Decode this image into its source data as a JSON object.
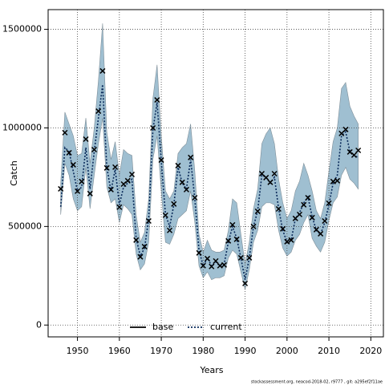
{
  "chart_data": {
    "type": "line",
    "xlabel": "Years",
    "ylabel": "Catch",
    "footer": "stockassessment.org, neacod-2018-02, r9777 , git: a295ef2f11ae",
    "xlim": [
      1943,
      2023
    ],
    "ylim": [
      -60000,
      1600000
    ],
    "xticks": [
      1950,
      1960,
      1970,
      1980,
      1990,
      2000,
      2010,
      2020
    ],
    "yticks": [
      0,
      500000,
      1000000,
      1500000
    ],
    "grid": true,
    "legend": "bottom",
    "band_color": "#9fbfd1",
    "x": [
      1946,
      1947,
      1948,
      1949,
      1950,
      1951,
      1952,
      1953,
      1954,
      1955,
      1956,
      1957,
      1958,
      1959,
      1960,
      1961,
      1962,
      1963,
      1964,
      1965,
      1966,
      1967,
      1968,
      1969,
      1970,
      1971,
      1972,
      1973,
      1974,
      1975,
      1976,
      1977,
      1978,
      1979,
      1980,
      1981,
      1982,
      1983,
      1984,
      1985,
      1986,
      1987,
      1988,
      1989,
      1990,
      1991,
      1992,
      1993,
      1994,
      1995,
      1996,
      1997,
      1998,
      1999,
      2000,
      2001,
      2002,
      2003,
      2004,
      2005,
      2006,
      2007,
      2008,
      2009,
      2010,
      2011,
      2012,
      2013,
      2014,
      2015,
      2016,
      2017
    ],
    "observed": [
      691000,
      976000,
      874000,
      813000,
      679000,
      728000,
      943000,
      667000,
      890000,
      1085000,
      1289000,
      797000,
      687000,
      801000,
      598000,
      715000,
      732000,
      764000,
      431000,
      346000,
      398000,
      528000,
      1000000,
      1142000,
      837000,
      557000,
      480000,
      614000,
      809000,
      724000,
      687000,
      850000,
      646000,
      366000,
      301000,
      337000,
      297000,
      325000,
      301000,
      305000,
      427000,
      508000,
      435000,
      341000,
      211000,
      341000,
      500000,
      577000,
      768000,
      748000,
      724000,
      768000,
      589000,
      488000,
      423000,
      431000,
      541000,
      561000,
      610000,
      646000,
      545000,
      484000,
      463000,
      528000,
      618000,
      728000,
      732000,
      972000,
      992000,
      878000,
      862000,
      886000
    ],
    "upper": [
      720000,
      1080000,
      1020000,
      960000,
      860000,
      870000,
      1050000,
      820000,
      1000000,
      1240000,
      1530000,
      980000,
      840000,
      930000,
      760000,
      890000,
      870000,
      860000,
      560000,
      420000,
      470000,
      640000,
      1150000,
      1320000,
      960000,
      680000,
      640000,
      680000,
      870000,
      900000,
      920000,
      1020000,
      780000,
      460000,
      370000,
      430000,
      380000,
      370000,
      370000,
      380000,
      480000,
      640000,
      620000,
      460000,
      310000,
      420000,
      590000,
      690000,
      920000,
      970000,
      1000000,
      920000,
      740000,
      620000,
      540000,
      580000,
      680000,
      730000,
      820000,
      760000,
      680000,
      580000,
      540000,
      620000,
      780000,
      930000,
      1000000,
      1200000,
      1230000,
      1110000,
      1060000,
      1020000
    ],
    "lower": [
      560000,
      820000,
      760000,
      640000,
      580000,
      600000,
      800000,
      590000,
      760000,
      920000,
      1050000,
      700000,
      620000,
      640000,
      520000,
      610000,
      590000,
      560000,
      360000,
      280000,
      310000,
      420000,
      840000,
      960000,
      680000,
      420000,
      410000,
      460000,
      540000,
      560000,
      580000,
      680000,
      520000,
      300000,
      240000,
      270000,
      230000,
      240000,
      240000,
      250000,
      340000,
      380000,
      360000,
      270000,
      180000,
      280000,
      420000,
      480000,
      600000,
      620000,
      620000,
      610000,
      480000,
      390000,
      350000,
      370000,
      430000,
      460000,
      520000,
      560000,
      440000,
      400000,
      370000,
      420000,
      530000,
      620000,
      650000,
      760000,
      800000,
      740000,
      720000,
      690000
    ],
    "series": [
      {
        "name": "base",
        "color": "#000000"
      },
      {
        "name": "current",
        "color": "#0a2a5a",
        "values": [
          600000,
          900000,
          880000,
          780000,
          680000,
          700000,
          900000,
          690000,
          880000,
          1050000,
          1220000,
          800000,
          680000,
          790000,
          610000,
          700000,
          720000,
          740000,
          440000,
          350000,
          390000,
          540000,
          990000,
          1130000,
          830000,
          560000,
          500000,
          610000,
          800000,
          720000,
          690000,
          840000,
          640000,
          380000,
          300000,
          340000,
          300000,
          320000,
          300000,
          310000,
          420000,
          500000,
          440000,
          340000,
          230000,
          340000,
          500000,
          580000,
          760000,
          750000,
          720000,
          750000,
          590000,
          480000,
          420000,
          430000,
          540000,
          570000,
          620000,
          650000,
          550000,
          480000,
          460000,
          520000,
          610000,
          720000,
          760000,
          960000,
          980000,
          880000,
          860000,
          850000
        ]
      }
    ]
  }
}
